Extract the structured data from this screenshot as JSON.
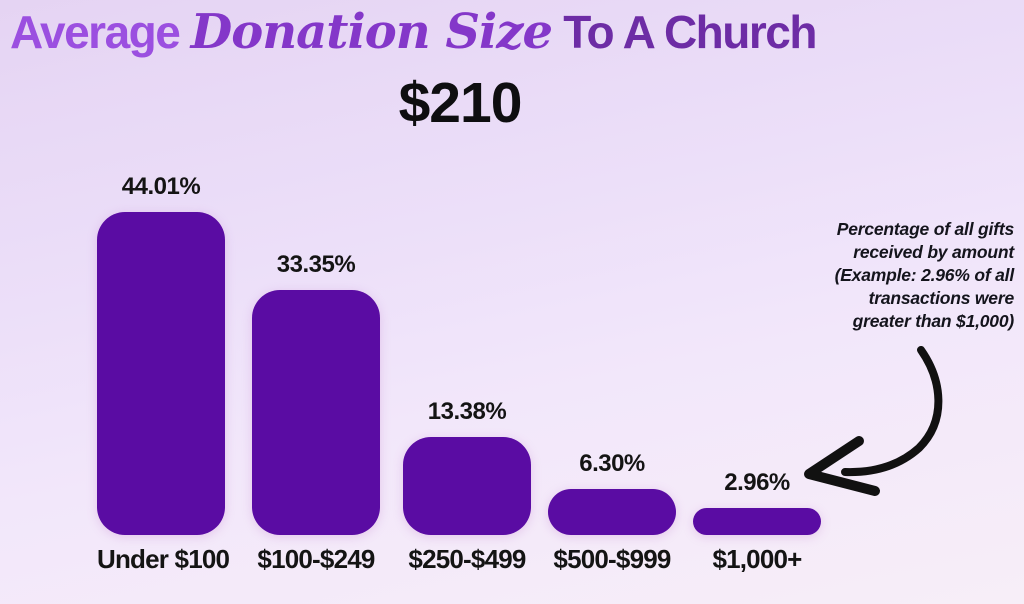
{
  "header": {
    "title_part1": "Average",
    "title_part2": "Donation Size",
    "title_part3": " To A Church",
    "average_value": "$210"
  },
  "chart_data": {
    "type": "bar",
    "title": "Average Donation Size To A Church",
    "subtitle_value": "$210",
    "categories": [
      "Under $100",
      "$100-$249",
      "$250-$499",
      "$500-$999",
      "$1,000+"
    ],
    "values": [
      44.01,
      33.35,
      13.38,
      6.3,
      2.96
    ],
    "value_labels": [
      "44.01%",
      "33.35%",
      "13.38%",
      "6.30%",
      "2.96%"
    ],
    "xlabel": "",
    "ylabel": "",
    "ylim": [
      0,
      50
    ],
    "grid": false,
    "legend": false,
    "bar_color": "#5a0ca3"
  },
  "annotation": {
    "text": "Percentage of all gifts received by amount (Example: 2.96% of all transactions were greater than $1,000)"
  },
  "colors": {
    "title_part1": "#9b4fe0",
    "title_part2": "#8437c9",
    "title_part3": "#6d2ca5",
    "bar": "#5a0ca3",
    "text": "#141414",
    "arrow": "#111111"
  }
}
